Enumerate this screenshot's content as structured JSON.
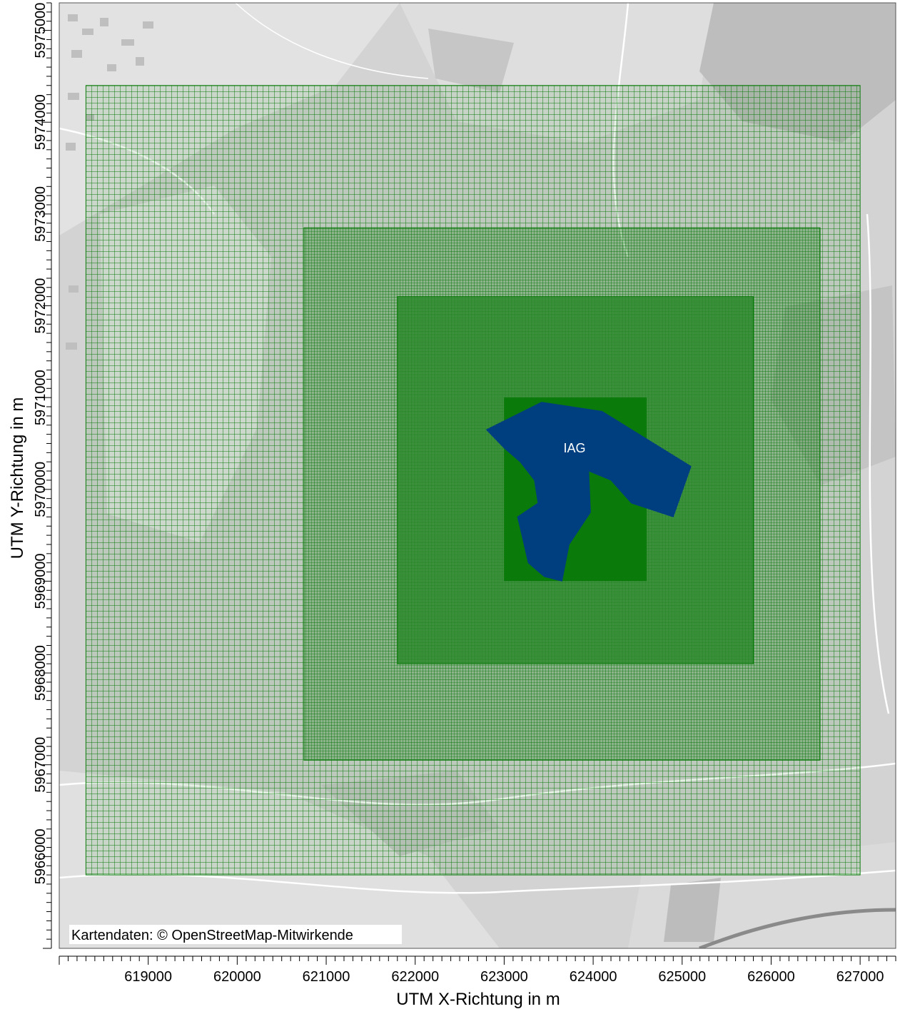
{
  "map": {
    "x_axis_label": "UTM X-Richtung in m",
    "y_axis_label": "UTM Y-Richtung in m",
    "attribution": "Kartendaten: © OpenStreetMap-Mitwirkende",
    "area_label": "IAG",
    "x_ticks": [
      "619000",
      "620000",
      "621000",
      "622000",
      "623000",
      "624000",
      "625000",
      "626000",
      "627000"
    ],
    "y_ticks": [
      "5966000",
      "5967000",
      "5968000",
      "5969000",
      "5970000",
      "5971000",
      "5972000",
      "5973000",
      "5974000",
      "5975000"
    ],
    "x_range": [
      618000,
      627400
    ],
    "y_range": [
      5965000,
      5975300
    ],
    "colors": {
      "grid": "#0a7a0a",
      "area_fill": "#003f7f",
      "basemap": "#d3d3d3",
      "area_label": "#ffffff"
    },
    "grids": [
      {
        "name": "outer",
        "x": [
          618300,
          627000
        ],
        "y": [
          5965800,
          5974400
        ],
        "cell": 64
      },
      {
        "name": "middle",
        "x": [
          620750,
          626550
        ],
        "y": [
          5967050,
          5972850
        ],
        "cell": 32
      },
      {
        "name": "inner",
        "x": [
          621800,
          625800
        ],
        "y": [
          5968100,
          5972100
        ],
        "cell": 16
      },
      {
        "name": "core",
        "x": [
          623000,
          624600
        ],
        "y": [
          5969000,
          5971000
        ],
        "cell": 8
      }
    ],
    "area_polygon": [
      [
        622800,
        5970650
      ],
      [
        623420,
        5970950
      ],
      [
        624100,
        5970850
      ],
      [
        624350,
        5970700
      ],
      [
        625100,
        5970250
      ],
      [
        624900,
        5969700
      ],
      [
        624430,
        5969850
      ],
      [
        624200,
        5970100
      ],
      [
        623950,
        5970200
      ],
      [
        623970,
        5969750
      ],
      [
        623730,
        5969400
      ],
      [
        623650,
        5969000
      ],
      [
        623450,
        5969050
      ],
      [
        623270,
        5969200
      ],
      [
        623200,
        5969500
      ],
      [
        623150,
        5969700
      ],
      [
        623380,
        5969850
      ],
      [
        623340,
        5970100
      ],
      [
        623180,
        5970300
      ],
      [
        623000,
        5970450
      ]
    ]
  }
}
